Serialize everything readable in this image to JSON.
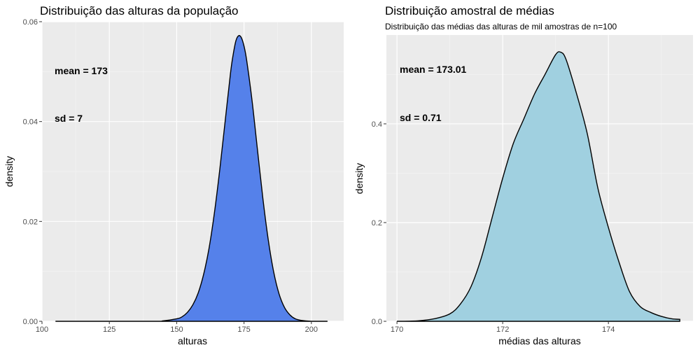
{
  "chart_data": [
    {
      "type": "area",
      "title": "Distribuição das alturas da população",
      "subtitle": "",
      "xlabel": "alturas",
      "ylabel": "density",
      "xlim": [
        100,
        212
      ],
      "ylim": [
        0,
        0.06
      ],
      "x_ticks": [
        "100",
        "125",
        "150",
        "175",
        "200"
      ],
      "y_ticks": [
        "0.00",
        "0.02",
        "0.04",
        "0.06"
      ],
      "grid": true,
      "fill_color": "#5581ea",
      "annotations": {
        "mean_label": "mean =  173",
        "sd_label": "sd     =  7"
      },
      "series": [
        {
          "x": [
            105,
            140,
            145,
            150,
            152,
            154,
            156,
            158,
            160,
            162,
            164,
            166,
            168,
            170,
            171,
            172,
            173,
            174,
            175,
            176,
            178,
            180,
            182,
            184,
            186,
            188,
            190,
            192,
            194,
            196,
            200,
            206
          ],
          "y": [
            0,
            0,
            0.0001,
            0.0005,
            0.0009,
            0.0018,
            0.0033,
            0.0057,
            0.0094,
            0.0146,
            0.0217,
            0.0304,
            0.0401,
            0.0498,
            0.0535,
            0.0562,
            0.0572,
            0.0568,
            0.0551,
            0.0522,
            0.0441,
            0.0343,
            0.0246,
            0.0163,
            0.0099,
            0.0055,
            0.0028,
            0.0013,
            0.0005,
            0.0002,
            0,
            0
          ]
        }
      ]
    },
    {
      "type": "area",
      "title": "Distribuição amostral de médias",
      "subtitle": "Distribuição das médias das alturas de mil amostras de n=100",
      "xlabel": "médias das alturas",
      "ylabel": "density",
      "xlim": [
        169.8,
        175.6
      ],
      "ylim": [
        0,
        0.58
      ],
      "x_ticks": [
        "170",
        "172",
        "174"
      ],
      "y_ticks": [
        "0.0",
        "0.2",
        "0.4"
      ],
      "grid": true,
      "fill_color": "#a0d0e0",
      "annotations": {
        "mean_label": "mean =  173.01",
        "sd_label": "sd     =  0.71"
      },
      "series": [
        {
          "x": [
            170.0,
            170.4,
            170.7,
            171.0,
            171.2,
            171.4,
            171.6,
            171.8,
            172.0,
            172.2,
            172.4,
            172.6,
            172.8,
            173.0,
            173.1,
            173.2,
            173.4,
            173.6,
            173.8,
            174.0,
            174.2,
            174.4,
            174.6,
            174.8,
            175.0,
            175.2,
            175.35
          ],
          "y": [
            0,
            0.001,
            0.005,
            0.015,
            0.035,
            0.07,
            0.13,
            0.21,
            0.29,
            0.36,
            0.41,
            0.46,
            0.5,
            0.54,
            0.545,
            0.53,
            0.46,
            0.38,
            0.27,
            0.19,
            0.12,
            0.06,
            0.03,
            0.018,
            0.01,
            0.005,
            0.004
          ]
        }
      ]
    }
  ]
}
